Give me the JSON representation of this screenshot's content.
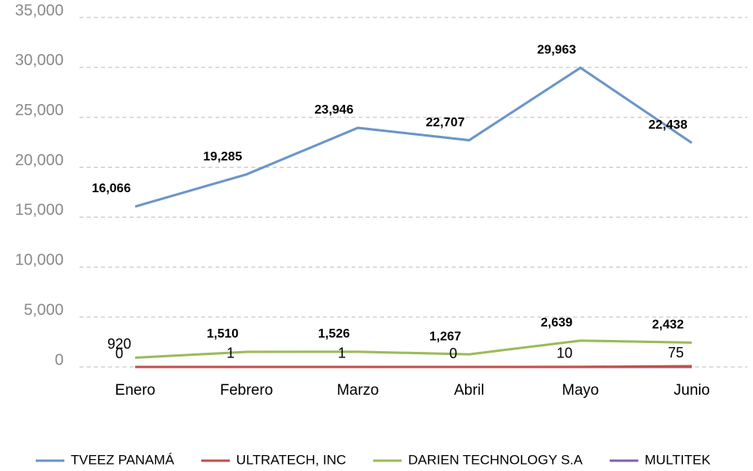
{
  "chart_data": {
    "type": "line",
    "categories": [
      "Enero",
      "Febrero",
      "Marzo",
      "Abril",
      "Mayo",
      "Junio"
    ],
    "series": [
      {
        "name": "TVEEZ PANAMÁ",
        "color": "#6a95c8",
        "values": [
          16066,
          19285,
          23946,
          22707,
          29963,
          22438
        ],
        "data_labels": true
      },
      {
        "name": "ULTRATECH, INC",
        "color": "#c0504d",
        "values": [
          0,
          1,
          1,
          0,
          10,
          75
        ],
        "data_labels": true
      },
      {
        "name": "DARIEN TECHNOLOGY S.A",
        "color": "#9bbb59",
        "values": [
          920,
          1510,
          1526,
          1267,
          2639,
          2432
        ],
        "data_labels": true
      },
      {
        "name": "MULTITEK",
        "color": "#8064a2",
        "values": [
          0,
          0,
          0,
          0,
          0,
          0
        ],
        "data_labels": false
      }
    ],
    "ylim": [
      0,
      35000
    ],
    "yticks": [
      {
        "value": 0,
        "label": "0"
      },
      {
        "value": 5000,
        "label": "5,000"
      },
      {
        "value": 10000,
        "label": "10,000"
      },
      {
        "value": 15000,
        "label": "15,000"
      },
      {
        "value": 20000,
        "label": "20,000"
      },
      {
        "value": 25000,
        "label": "25,000"
      },
      {
        "value": 30000,
        "label": "30,000"
      },
      {
        "value": 35000,
        "label": "35,000"
      }
    ],
    "grid": true,
    "legend": "bottom"
  }
}
